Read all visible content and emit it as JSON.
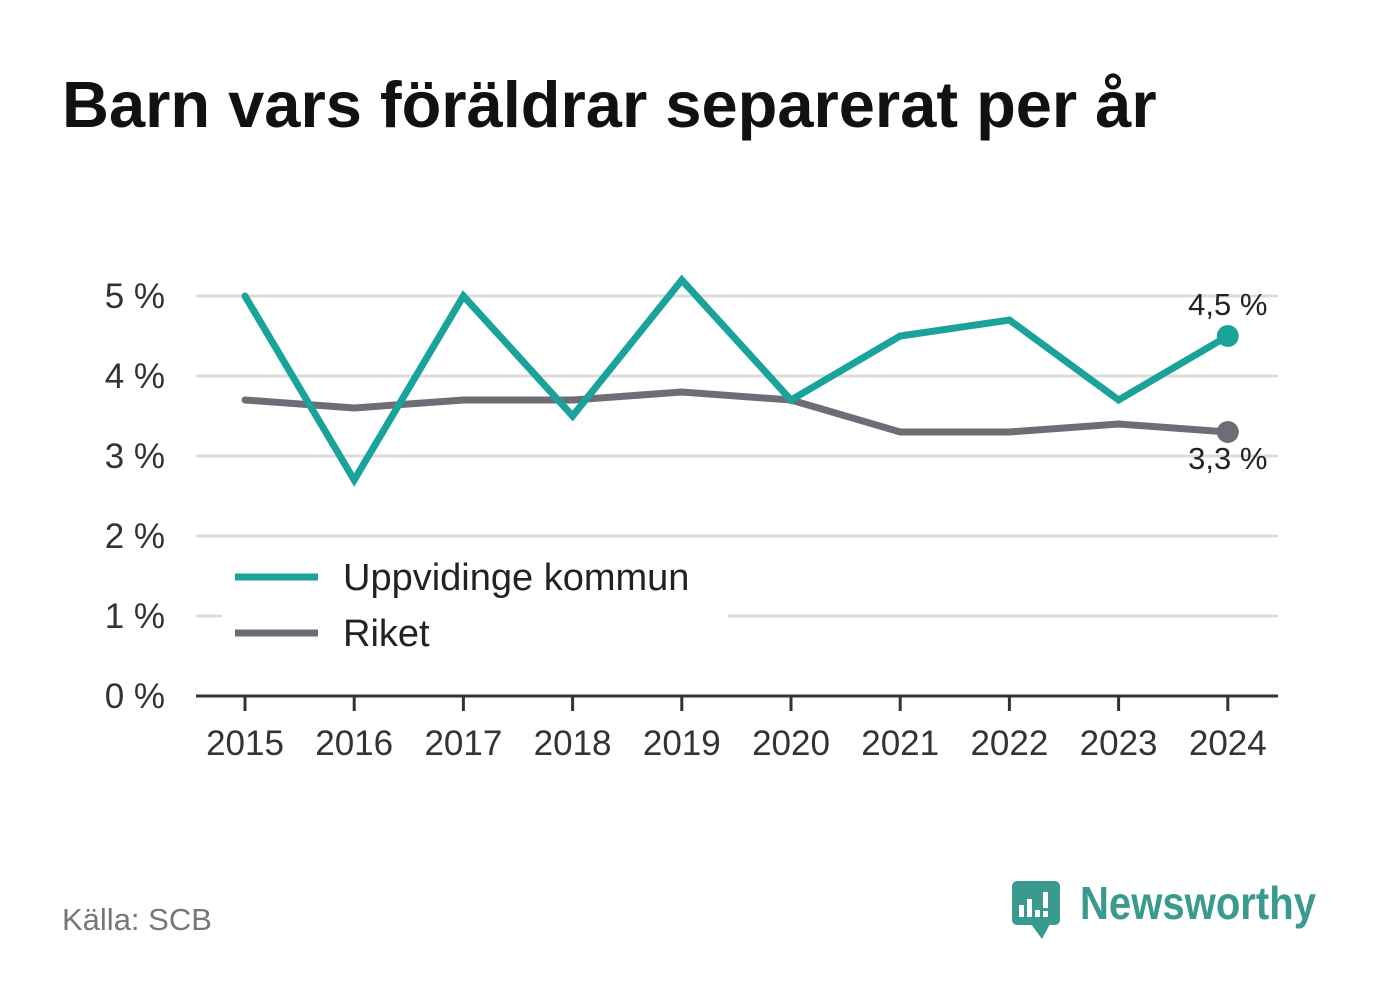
{
  "colors": {
    "accent": "#1aa39a",
    "national": "#6e6d75",
    "grid": "#dcdcdc",
    "axis": "#333333",
    "logo": "#3a9a8e",
    "source_text": "#777777"
  },
  "source": "Källa: SCB",
  "logo": {
    "text": "Newsworthy",
    "icon": "newsworthy-logo-icon"
  },
  "chart_data": {
    "type": "line",
    "title": "Barn vars föräldrar separerat per år",
    "xlabel": "",
    "ylabel": "",
    "x": [
      2015,
      2016,
      2017,
      2018,
      2019,
      2020,
      2021,
      2022,
      2023,
      2024
    ],
    "ylim": [
      0,
      5
    ],
    "y_ticks": [
      0,
      1,
      2,
      3,
      4,
      5
    ],
    "y_tick_labels": [
      "0 %",
      "1 %",
      "2 %",
      "3 %",
      "4 %",
      "5 %"
    ],
    "grid": true,
    "legend_position": "bottom-left",
    "series": [
      {
        "name": "Uppvidinge kommun",
        "color": "#1aa39a",
        "values": [
          5.0,
          2.7,
          5.0,
          3.5,
          5.2,
          3.7,
          4.5,
          4.7,
          3.7,
          4.5
        ],
        "end_label": "4,5 %",
        "end_label_position": "above"
      },
      {
        "name": "Riket",
        "color": "#6e6d75",
        "values": [
          3.7,
          3.6,
          3.7,
          3.7,
          3.8,
          3.7,
          3.3,
          3.3,
          3.4,
          3.3
        ],
        "end_label": "3,3 %",
        "end_label_position": "below"
      }
    ]
  }
}
